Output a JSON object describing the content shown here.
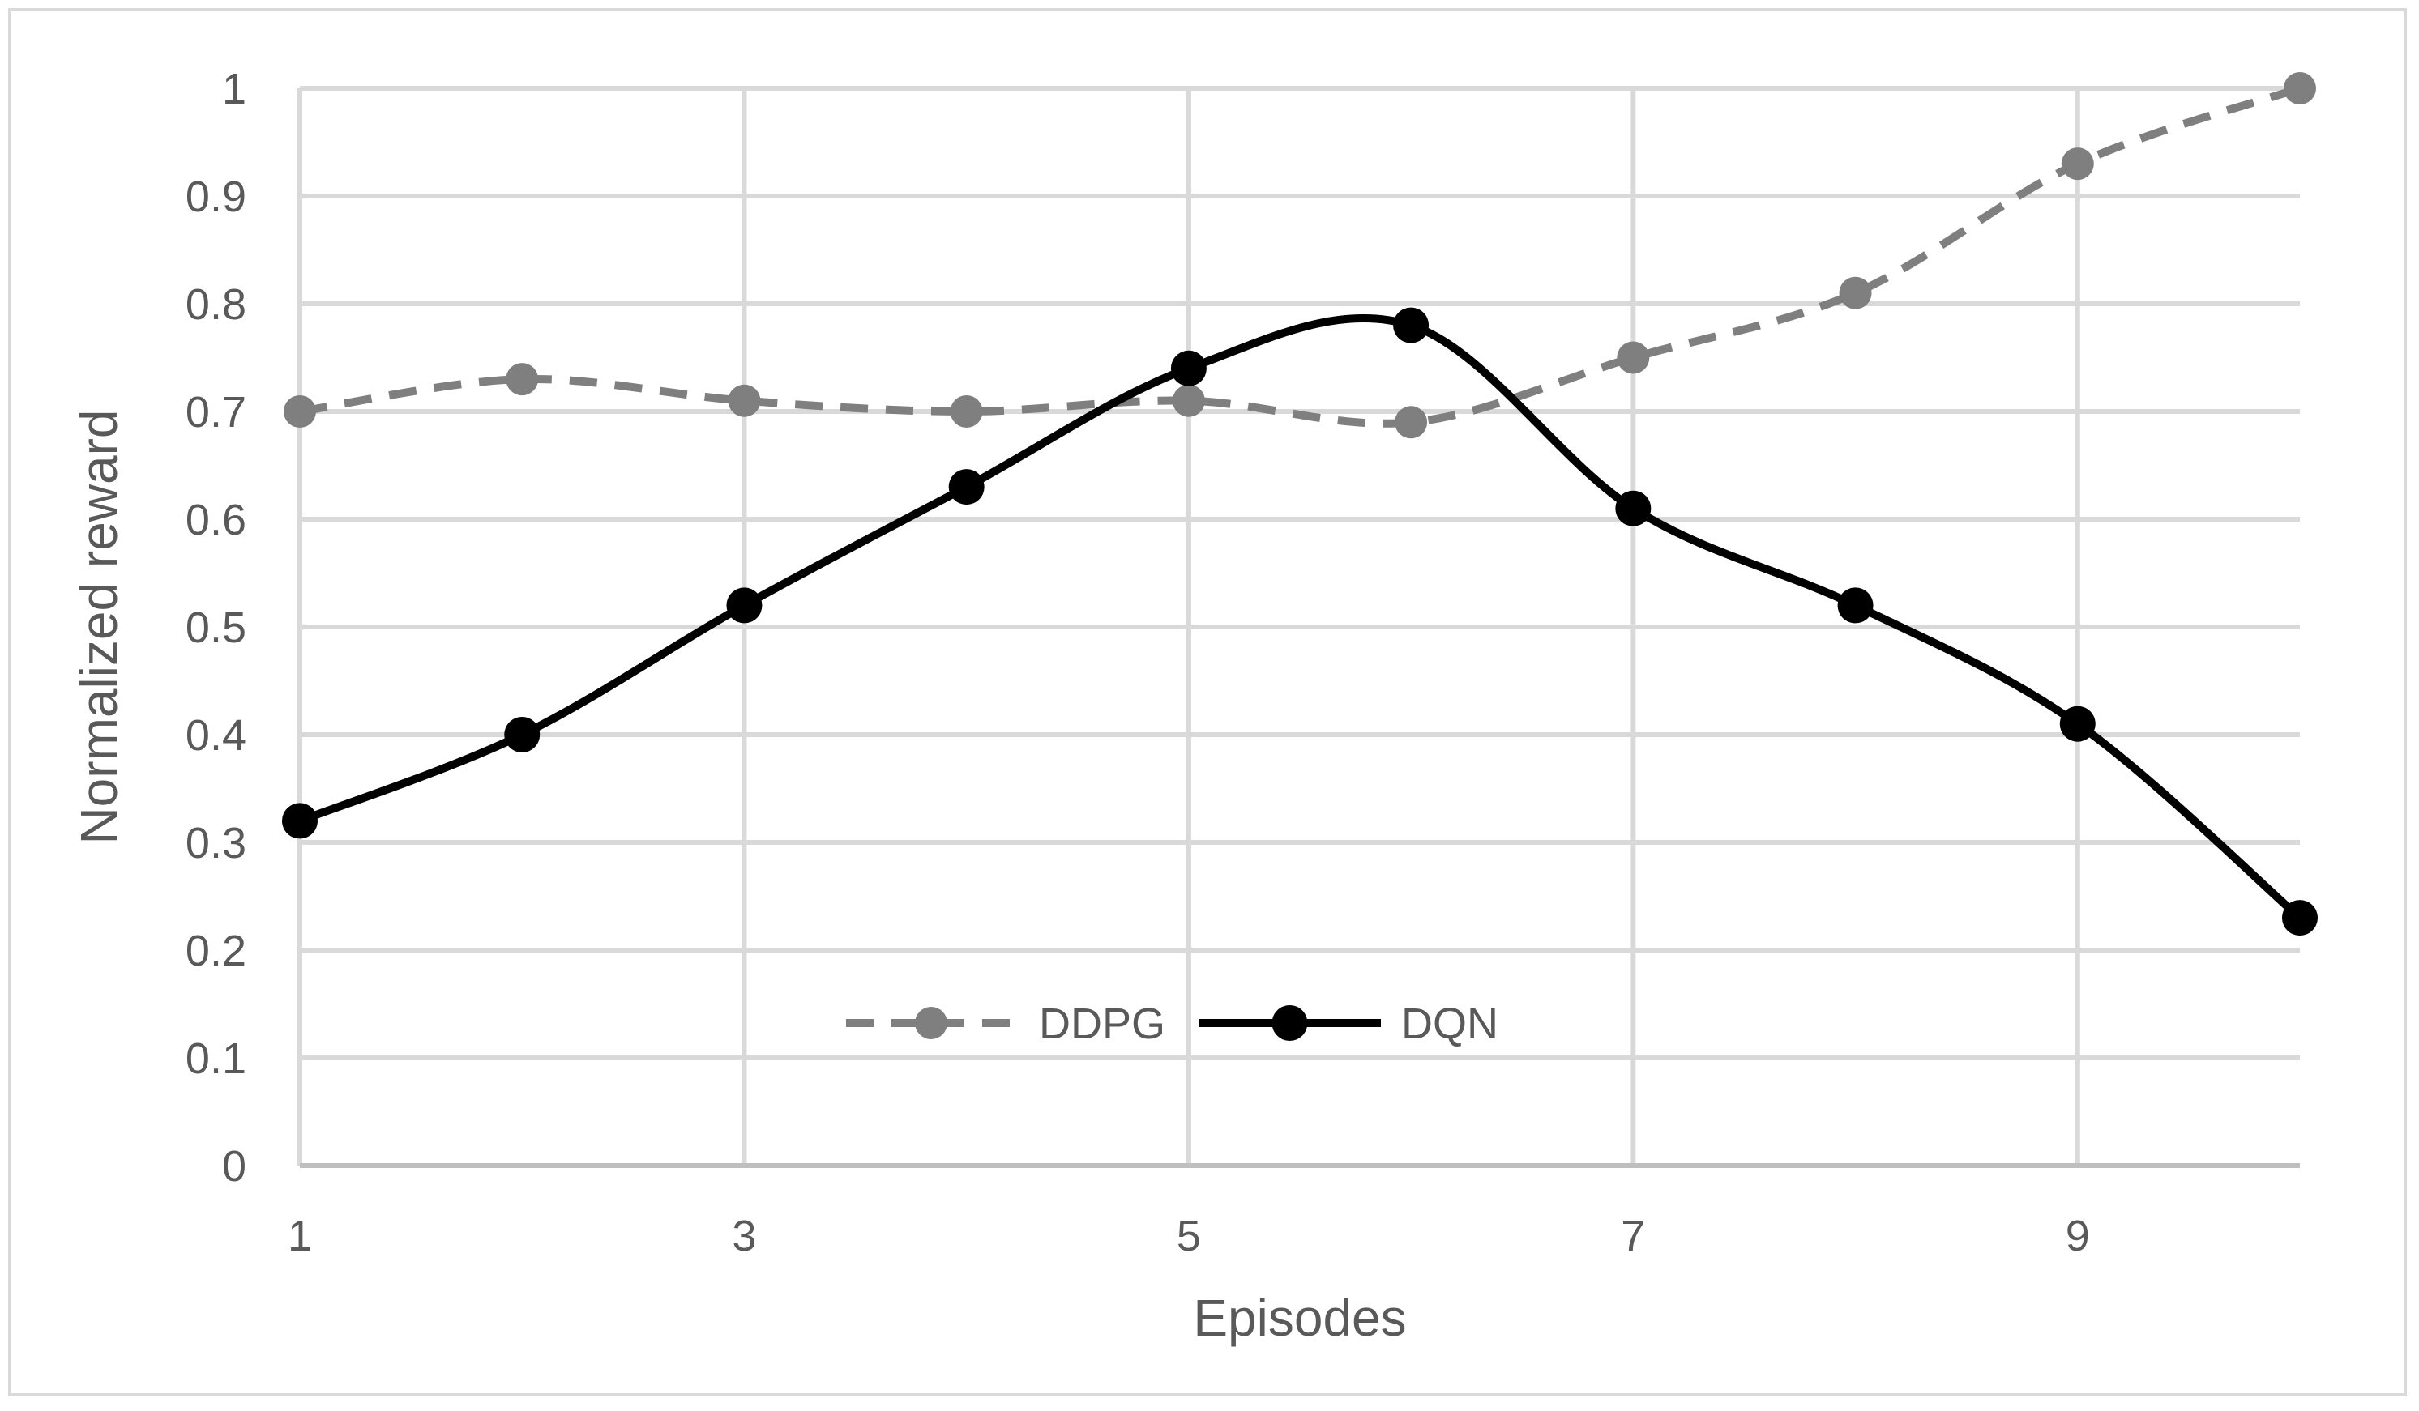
{
  "chart_data": {
    "type": "line",
    "xlabel": "Episodes",
    "ylabel": "Normalized reward",
    "x": [
      1,
      2,
      3,
      4,
      5,
      6,
      7,
      8,
      9,
      10
    ],
    "xlim": [
      1,
      10
    ],
    "ylim": [
      0,
      1
    ],
    "x_ticks": [
      "1",
      "3",
      "5",
      "7",
      "9"
    ],
    "x_tick_values": [
      1,
      3,
      5,
      7,
      9
    ],
    "y_ticks": [
      "0",
      "0.1",
      "0.2",
      "0.3",
      "0.4",
      "0.5",
      "0.6",
      "0.7",
      "0.8",
      "0.9",
      "1"
    ],
    "y_tick_values": [
      0,
      0.1,
      0.2,
      0.3,
      0.4,
      0.5,
      0.6,
      0.7,
      0.8,
      0.9,
      1
    ],
    "grid": true,
    "legend_position": "bottom-center inside plot",
    "series": [
      {
        "name": "DDPG",
        "values": [
          0.7,
          0.73,
          0.71,
          0.7,
          0.71,
          0.69,
          0.75,
          0.81,
          0.93,
          1.0
        ],
        "color": "#7f7f7f",
        "line_style": "dashed",
        "smooth": true
      },
      {
        "name": "DQN",
        "values": [
          0.32,
          0.4,
          0.52,
          0.63,
          0.74,
          0.78,
          0.61,
          0.52,
          0.41,
          0.23
        ],
        "color": "#000000",
        "line_style": "solid",
        "smooth": true
      }
    ]
  }
}
